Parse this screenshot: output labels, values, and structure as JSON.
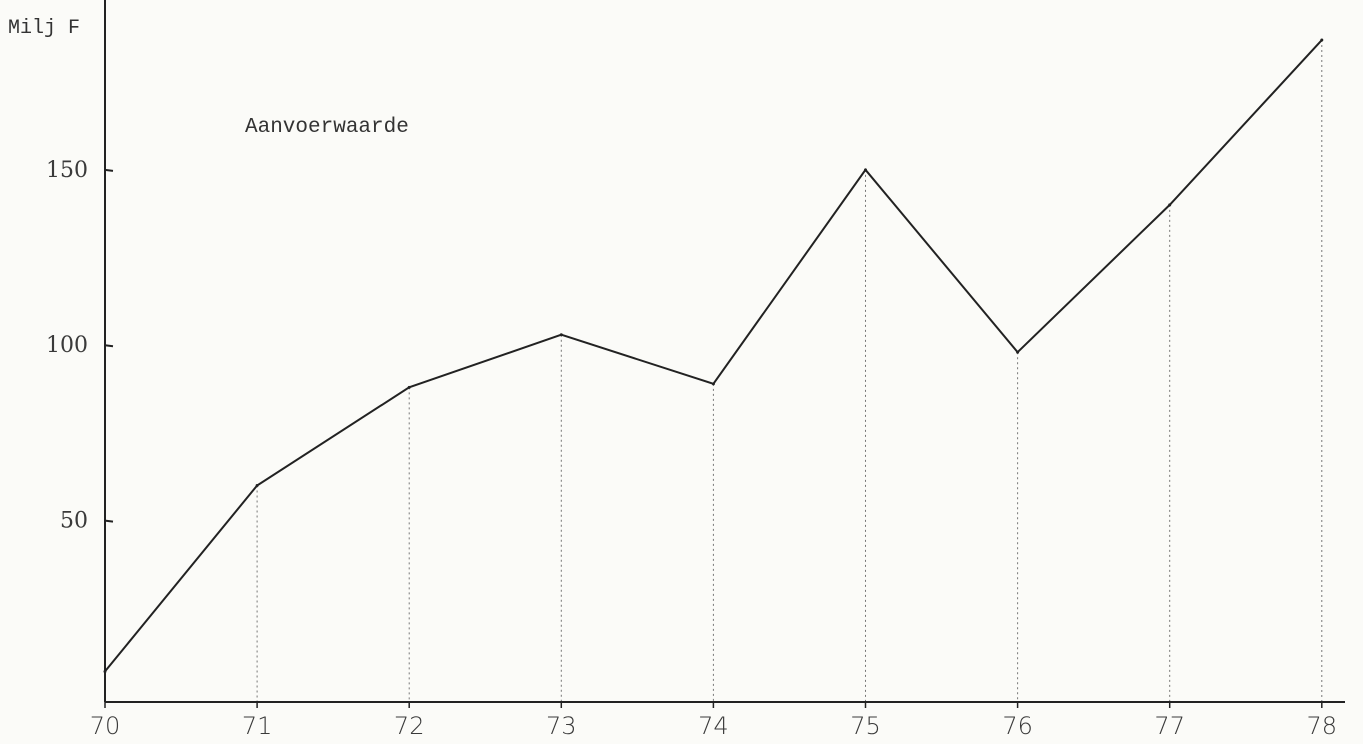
{
  "chart_data": {
    "type": "line",
    "unit_label": "Milj F",
    "series_label": "Aanvoerwaarde",
    "x": [
      "70",
      "71",
      "72",
      "73",
      "74",
      "75",
      "76",
      "77",
      "78"
    ],
    "series": [
      {
        "name": "Aanvoerwaarde",
        "values": [
          7,
          60,
          88,
          103,
          89,
          150,
          98,
          140,
          187
        ]
      }
    ],
    "y_ticks": [
      50,
      100,
      150
    ],
    "ylim": [
      0,
      195
    ],
    "xlabel": "",
    "ylabel": "",
    "grid": "dotted vertical drop lines"
  }
}
